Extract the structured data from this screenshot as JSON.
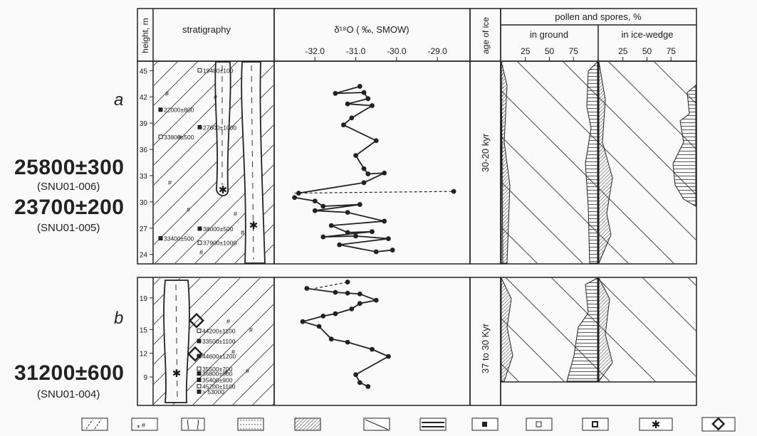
{
  "left_labels": {
    "panel_a": "a",
    "panel_b": "b",
    "dates": [
      {
        "value": "25800±300",
        "code": "(SNU01-006)"
      },
      {
        "value": "23700±200",
        "code": "(SNU01-005)"
      },
      {
        "value": "31200±600",
        "code": "(SNU01-004)"
      }
    ]
  },
  "headers": {
    "height": "height, m",
    "stratigraphy": "stratigraphy",
    "delta": "δ¹⁸O ( ‰, SMOW)",
    "age": "age of ice",
    "pollen": "pollen and spores, %",
    "in_ground": "in ground",
    "in_wedge": "in ice-wedge"
  },
  "age_labels": {
    "a": "30-20 kyr",
    "b": "37 to 30 Kyr"
  },
  "legend": [
    "1",
    "2",
    "3",
    "4",
    "5",
    "6",
    "7",
    "8",
    "9",
    "10",
    "11",
    "12"
  ],
  "chart_data": {
    "type": "line",
    "x_axis": {
      "label": "δ¹⁸O ( ‰, SMOW)",
      "ticks": [
        -32.0,
        -31.0,
        -30.0,
        -29.0
      ],
      "range": [
        -33.0,
        -28.2
      ]
    },
    "pollen_axis": {
      "ticks": [
        25,
        50,
        75
      ],
      "range": [
        0,
        100
      ]
    },
    "panel_a": {
      "height_ticks": [
        24,
        27,
        30,
        33,
        36,
        39,
        42,
        45
      ],
      "height_range": [
        23,
        46
      ],
      "series": [
        {
          "x": [
            -30.9,
            -31.5,
            -30.8,
            -30.7,
            -31.2,
            -30.6,
            -31.1,
            -31.3,
            -30.5,
            -31.0,
            -30.8,
            -30.7,
            -30.3,
            -30.8,
            -32.4
          ],
          "y": [
            43.2,
            42.4,
            42.5,
            41.8,
            41.2,
            41.0,
            39.6,
            38.8,
            37.0,
            35.3,
            33.8,
            33.2,
            33.3,
            32.2,
            31.0
          ]
        },
        {
          "x": [
            -32.5,
            -32.0,
            -31.8,
            -30.9,
            -32.0,
            -31.2,
            -30.3,
            -31.6,
            -31.2,
            -30.6,
            -31.8,
            -31.0,
            -30.2,
            -31.4,
            -30.5,
            -30.1
          ],
          "y": [
            30.5,
            30.1,
            29.5,
            29.7,
            29.0,
            28.8,
            27.8,
            27.3,
            26.5,
            26.6,
            26.0,
            26.1,
            25.8,
            25.1,
            24.3,
            24.5
          ]
        }
      ],
      "dashed": {
        "x": [
          -32.5,
          -28.6
        ],
        "y": [
          31.0,
          31.2
        ]
      },
      "samples": [
        {
          "label": "19480±100",
          "y": 45.0
        },
        {
          "label": "22000±800",
          "y": 40.5
        },
        {
          "label": "27600±1000",
          "y": 38.5
        },
        {
          "label": "33800±500",
          "y": 37.4
        },
        {
          "label": "38000±500",
          "y": 26.9
        },
        {
          "label": "33400±500",
          "y": 25.8
        },
        {
          "label": "37900±1000",
          "y": 25.3
        }
      ]
    },
    "panel_b": {
      "height_ticks": [
        9,
        12,
        15,
        19
      ],
      "height_range": [
        5.5,
        21.5
      ],
      "series": [
        {
          "x": [
            -32.2,
            -31.5,
            -31.2,
            -30.9,
            -30.5,
            -30.9,
            -31.1,
            -31.5,
            -31.8,
            -32.3,
            -31.9,
            -31.6,
            -31.2,
            -30.6,
            -30.2,
            -31.0,
            -30.9,
            -30.7
          ],
          "y": [
            20.2,
            19.7,
            19.6,
            19.5,
            18.7,
            18.3,
            17.6,
            17.0,
            16.7,
            16.0,
            15.4,
            13.8,
            13.4,
            12.5,
            11.6,
            9.3,
            8.3,
            7.8
          ]
        }
      ],
      "dashed": {
        "x": [
          -32.0,
          -31.2
        ],
        "y": [
          20.2,
          21.0
        ]
      },
      "samples": [
        {
          "label": "44200±1100",
          "y": 14.8
        },
        {
          "label": "33500±1100",
          "y": 13.5
        },
        {
          "label": "44600±1200",
          "y": 11.6
        },
        {
          "label": "35500±700",
          "y": 10.0
        },
        {
          "label": "36800±800",
          "y": 9.4
        },
        {
          "label": "35400±900",
          "y": 8.6
        },
        {
          "label": "45200±1100",
          "y": 7.8
        },
        {
          "label": "> 53000",
          "y": 7.1
        }
      ]
    }
  }
}
